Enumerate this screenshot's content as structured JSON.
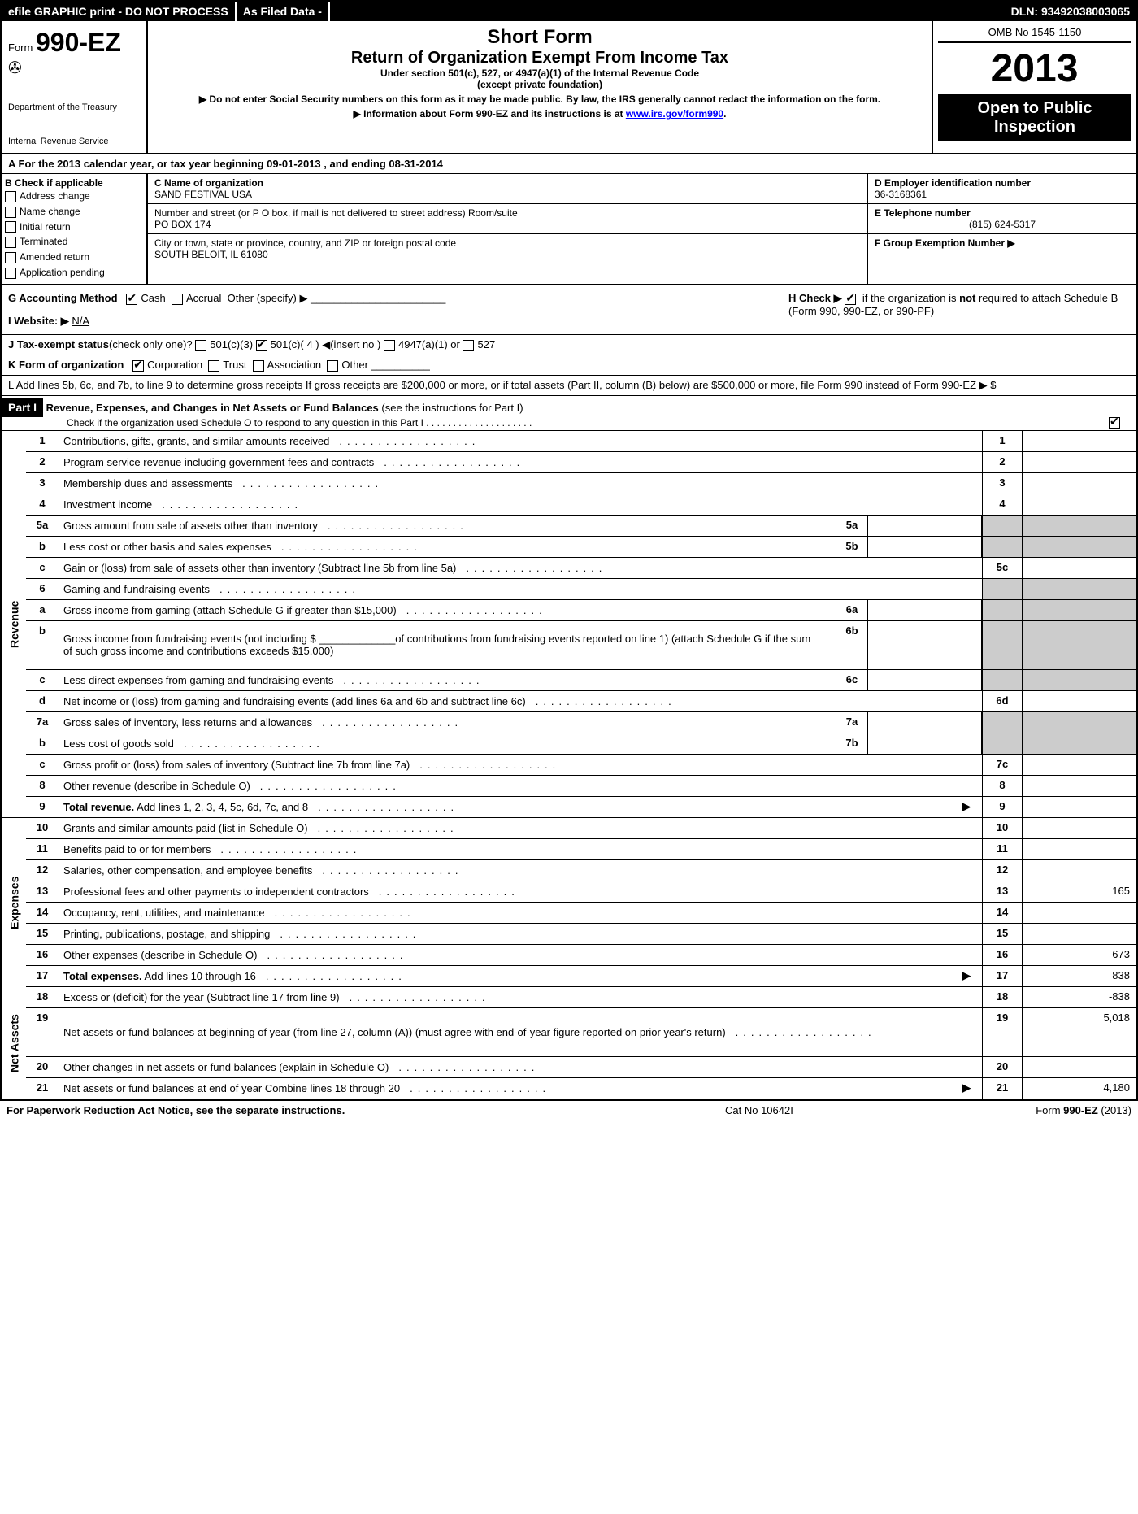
{
  "topbar": {
    "left": "efile GRAPHIC print - DO NOT PROCESS",
    "mid": "As Filed Data -",
    "right": "DLN: 93492038003065"
  },
  "header": {
    "form_prefix": "Form",
    "form_num": "990-EZ",
    "dept1": "Department of the Treasury",
    "dept2": "Internal Revenue Service",
    "title1": "Short Form",
    "title2": "Return of Organization Exempt From Income Tax",
    "sub1": "Under section 501(c), 527, or 4947(a)(1) of the Internal Revenue Code",
    "sub2": "(except private foundation)",
    "note1": "▶ Do not enter Social Security numbers on this form as it may be made public. By law, the IRS generally cannot redact the information on the form.",
    "note2_prefix": "▶ Information about Form 990-EZ and its instructions is at ",
    "note2_link": "www.irs.gov/form990",
    "omb": "OMB No  1545-1150",
    "year": "2013",
    "open1": "Open to Public",
    "open2": "Inspection"
  },
  "row_a": "A  For the 2013 calendar year, or tax year beginning 09-01-2013             , and ending 08-31-2014",
  "section_b": {
    "b_label": "B  Check if applicable",
    "checks": [
      "Address change",
      "Name change",
      "Initial return",
      "Terminated",
      "Amended return",
      "Application pending"
    ],
    "c_label": "C Name of organization",
    "c_name": "SAND FESTIVAL USA",
    "addr_label": "Number and street (or P O  box, if mail is not delivered to street address) Room/suite",
    "addr": "PO BOX 174",
    "city_label": "City or town, state or province, country, and ZIP or foreign postal code",
    "city": "SOUTH BELOIT, IL  61080",
    "d_label": "D Employer identification number",
    "d_val": "36-3168361",
    "e_label": "E Telephone number",
    "e_val": "(815) 624-5317",
    "f_label": "F Group Exemption Number   ▶"
  },
  "gh": {
    "g_label": "G Accounting Method",
    "g_cash": "Cash",
    "g_accrual": "Accrual",
    "g_other": "Other (specify) ▶",
    "h_label": "H  Check ▶",
    "h_text1": "if the organization is ",
    "h_not": "not",
    "h_text2": " required to attach Schedule B (Form 990, 990-EZ, or 990-PF)",
    "i_label": "I Website: ▶",
    "i_val": "N/A"
  },
  "j": {
    "label": "J Tax-exempt status",
    "note": "(check only one)?",
    "o1": "501(c)(3)",
    "o2": "501(c)( 4 ) ◀(insert no )",
    "o3": "4947(a)(1) or",
    "o4": "527"
  },
  "k": {
    "label": "K Form of organization",
    "o1": "Corporation",
    "o2": "Trust",
    "o3": "Association",
    "o4": "Other"
  },
  "l": "L Add lines 5b, 6c, and 7b, to line 9 to determine gross receipts  If gross receipts are $200,000 or more, or if total assets (Part II, column (B) below) are $500,000 or more, file Form 990 instead of Form 990-EZ                                                                                           ▶ $",
  "part1": {
    "label": "Part I",
    "title": "Revenue, Expenses, and Changes in Net Assets or Fund Balances",
    "note": "(see the instructions for Part I)",
    "sub": "Check if the organization used Schedule O to respond to any question in this Part I  .  .  .  .  .  .  .  .  .  .  .  .  .  .  .  .  .  .  .  ."
  },
  "revenue": {
    "side": "Revenue",
    "rows": [
      {
        "n": "1",
        "d": "Contributions, gifts, grants, and similar amounts received",
        "ln": "1",
        "v": ""
      },
      {
        "n": "2",
        "d": "Program service revenue including government fees and contracts",
        "ln": "2",
        "v": ""
      },
      {
        "n": "3",
        "d": "Membership dues and assessments",
        "ln": "3",
        "v": ""
      },
      {
        "n": "4",
        "d": "Investment income",
        "ln": "4",
        "v": ""
      },
      {
        "n": "5a",
        "d": "Gross amount from sale of assets other than inventory",
        "sn": "5a",
        "sv": "",
        "gray": true
      },
      {
        "n": "b",
        "d": "Less  cost or other basis and sales expenses",
        "sn": "5b",
        "sv": "",
        "gray": true
      },
      {
        "n": "c",
        "d": "Gain or (loss) from sale of assets other than inventory (Subtract line 5b from line 5a)",
        "ln": "5c",
        "v": ""
      },
      {
        "n": "6",
        "d": "Gaming and fundraising events",
        "gray_all": true
      },
      {
        "n": "a",
        "d": "Gross income from gaming (attach Schedule G if greater than $15,000)",
        "sn": "6a",
        "sv": "",
        "gray": true
      },
      {
        "n": "b",
        "d": "Gross income from fundraising events (not including $ _____________of contributions from fundraising events reported on line 1) (attach Schedule G if the sum of such gross income and contributions exceeds $15,000)",
        "sn": "6b",
        "sv": "",
        "gray": true,
        "tall": true
      },
      {
        "n": "c",
        "d": "Less  direct expenses from gaming and fundraising events",
        "sn": "6c",
        "sv": "",
        "gray": true
      },
      {
        "n": "d",
        "d": "Net income or (loss) from gaming and fundraising events (add lines 6a and 6b and subtract line 6c)",
        "ln": "6d",
        "v": ""
      },
      {
        "n": "7a",
        "d": "Gross sales of inventory, less returns and allowances",
        "sn": "7a",
        "sv": "",
        "gray": true
      },
      {
        "n": "b",
        "d": "Less  cost of goods sold",
        "sn": "7b",
        "sv": "",
        "gray": true
      },
      {
        "n": "c",
        "d": "Gross profit or (loss) from sales of inventory (Subtract line 7b from line 7a)",
        "ln": "7c",
        "v": ""
      },
      {
        "n": "8",
        "d": "Other revenue (describe in Schedule O)",
        "ln": "8",
        "v": ""
      },
      {
        "n": "9",
        "d": "Total revenue. Add lines 1, 2, 3, 4, 5c, 6d, 7c, and 8",
        "ln": "9",
        "v": "",
        "bold": true,
        "arrow": true
      }
    ]
  },
  "expenses": {
    "side": "Expenses",
    "rows": [
      {
        "n": "10",
        "d": "Grants and similar amounts paid (list in Schedule O)",
        "ln": "10",
        "v": ""
      },
      {
        "n": "11",
        "d": "Benefits paid to or for members",
        "ln": "11",
        "v": ""
      },
      {
        "n": "12",
        "d": "Salaries, other compensation, and employee benefits",
        "ln": "12",
        "v": ""
      },
      {
        "n": "13",
        "d": "Professional fees and other payments to independent contractors",
        "ln": "13",
        "v": "165"
      },
      {
        "n": "14",
        "d": "Occupancy, rent, utilities, and maintenance",
        "ln": "14",
        "v": ""
      },
      {
        "n": "15",
        "d": "Printing, publications, postage, and shipping",
        "ln": "15",
        "v": ""
      },
      {
        "n": "16",
        "d": "Other expenses (describe in Schedule O)",
        "ln": "16",
        "v": "673"
      },
      {
        "n": "17",
        "d": "Total expenses. Add lines 10 through 16",
        "ln": "17",
        "v": "838",
        "bold": true,
        "arrow": true
      }
    ]
  },
  "netassets": {
    "side": "Net Assets",
    "rows": [
      {
        "n": "18",
        "d": "Excess or (deficit) for the year (Subtract line 17 from line 9)",
        "ln": "18",
        "v": "-838"
      },
      {
        "n": "19",
        "d": "Net assets or fund balances at beginning of year (from line 27, column (A)) (must agree with end-of-year figure reported on prior year's return)",
        "ln": "19",
        "v": "5,018",
        "tall": true
      },
      {
        "n": "20",
        "d": "Other changes in net assets or fund balances (explain in Schedule O)",
        "ln": "20",
        "v": ""
      },
      {
        "n": "21",
        "d": "Net assets or fund balances at end of year  Combine lines 18 through 20",
        "ln": "21",
        "v": "4,180",
        "arrow": true
      }
    ]
  },
  "footer": {
    "l": "For Paperwork Reduction Act Notice, see the separate instructions.",
    "m": "Cat No  10642I",
    "r_prefix": "Form ",
    "r_form": "990-EZ",
    "r_suffix": " (2013)"
  }
}
